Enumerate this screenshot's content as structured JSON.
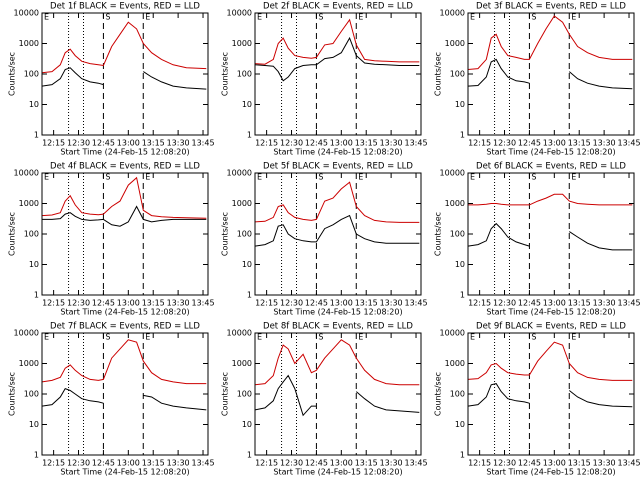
{
  "chart_data": [
    {
      "type": "line",
      "title": "Det 1f BLACK = Events, RED = LLD",
      "x_label": "Start Time (24-Feb-15 12:08:20)",
      "y_label": "Counts/sec",
      "log_scale": true,
      "xlim": [
        "12:08",
        "13:48"
      ],
      "ylim": [
        1,
        10000
      ],
      "yticks": [
        1,
        10,
        100,
        1000,
        10000
      ],
      "xticks": [
        "12:15",
        "12:30",
        "12:45",
        "13:00",
        "13:15",
        "13:30",
        "13:45"
      ],
      "x": [
        "12:08",
        "12:14",
        "12:19",
        "12:22",
        "12:25",
        "12:28",
        "12:32",
        "12:37",
        "12:42",
        "12:45",
        "12:50",
        "12:55",
        "13:00",
        "13:05",
        "13:09",
        "13:14",
        "13:20",
        "13:27",
        "13:35",
        "13:47"
      ],
      "series": [
        {
          "color": "#000000",
          "values": [
            40,
            45,
            70,
            140,
            160,
            110,
            70,
            55,
            50,
            45,
            null,
            null,
            null,
            null,
            120,
            80,
            55,
            40,
            35,
            32
          ]
        },
        {
          "color": "#cc0000",
          "values": [
            110,
            120,
            200,
            500,
            650,
            400,
            260,
            220,
            200,
            190,
            800,
            2000,
            5000,
            3000,
            1000,
            500,
            300,
            200,
            160,
            150
          ]
        }
      ],
      "annotations": [
        {
          "x": "12:08",
          "label": "E"
        },
        {
          "x": "12:45",
          "label": "S"
        },
        {
          "x": "13:09",
          "label": "E"
        }
      ],
      "dashed_lines": [
        "12:45",
        "13:09"
      ],
      "dotted_lines": [
        "12:24",
        "12:33"
      ]
    },
    {
      "type": "line",
      "title": "Det 2f BLACK = Events, RED = LLD",
      "x_label": "Start Time (24-Feb-15 12:08:20)",
      "y_label": "Counts/sec",
      "log_scale": true,
      "xlim": [
        "12:08",
        "13:48"
      ],
      "ylim": [
        1,
        10000
      ],
      "yticks": [
        1,
        10,
        100,
        1000,
        10000
      ],
      "xticks": [
        "12:15",
        "12:30",
        "12:45",
        "13:00",
        "13:15",
        "13:30",
        "13:45"
      ],
      "x": [
        "12:08",
        "12:14",
        "12:19",
        "12:22",
        "12:25",
        "12:28",
        "12:32",
        "12:37",
        "12:42",
        "12:45",
        "12:50",
        "12:55",
        "13:00",
        "13:05",
        "13:09",
        "13:14",
        "13:20",
        "13:27",
        "13:35",
        "13:47"
      ],
      "series": [
        {
          "color": "#000000",
          "values": [
            200,
            190,
            180,
            120,
            60,
            80,
            150,
            190,
            200,
            200,
            320,
            350,
            500,
            1500,
            400,
            230,
            210,
            200,
            190,
            190
          ]
        },
        {
          "color": "#cc0000",
          "values": [
            220,
            210,
            300,
            1000,
            1500,
            700,
            400,
            350,
            330,
            350,
            900,
            1000,
            2500,
            6000,
            900,
            300,
            270,
            260,
            250,
            250
          ]
        }
      ],
      "annotations": [
        {
          "x": "12:08",
          "label": "E"
        },
        {
          "x": "12:45",
          "label": "S"
        },
        {
          "x": "13:09",
          "label": "E"
        }
      ],
      "dashed_lines": [
        "12:45",
        "13:09"
      ],
      "dotted_lines": [
        "12:24",
        "12:33"
      ]
    },
    {
      "type": "line",
      "title": "Det 3f BLACK = Events, RED = LLD",
      "x_label": "Start Time (24-Feb-15 12:08:20)",
      "y_label": "Counts/sec",
      "log_scale": true,
      "xlim": [
        "12:08",
        "13:48"
      ],
      "ylim": [
        1,
        10000
      ],
      "yticks": [
        1,
        10,
        100,
        1000,
        10000
      ],
      "xticks": [
        "12:15",
        "12:30",
        "12:45",
        "13:00",
        "13:15",
        "13:30",
        "13:45"
      ],
      "x": [
        "12:08",
        "12:14",
        "12:19",
        "12:22",
        "12:25",
        "12:28",
        "12:32",
        "12:37",
        "12:42",
        "12:45",
        "12:50",
        "12:55",
        "13:00",
        "13:05",
        "13:09",
        "13:14",
        "13:20",
        "13:27",
        "13:35",
        "13:47"
      ],
      "series": [
        {
          "color": "#000000",
          "values": [
            40,
            42,
            80,
            250,
            300,
            150,
            80,
            60,
            55,
            50,
            null,
            null,
            null,
            null,
            120,
            70,
            50,
            40,
            35,
            33
          ]
        },
        {
          "color": "#cc0000",
          "values": [
            140,
            150,
            300,
            1500,
            2000,
            800,
            400,
            350,
            300,
            300,
            1000,
            3000,
            8000,
            5000,
            2000,
            800,
            500,
            350,
            300,
            300
          ]
        }
      ],
      "annotations": [
        {
          "x": "12:08",
          "label": "E"
        },
        {
          "x": "12:45",
          "label": "S"
        },
        {
          "x": "13:09",
          "label": "E"
        }
      ],
      "dashed_lines": [
        "12:45",
        "13:09"
      ],
      "dotted_lines": [
        "12:24",
        "12:33"
      ]
    },
    {
      "type": "line",
      "title": "Det 4f BLACK = Events, RED = LLD",
      "x_label": "Start Time (24-Feb-15 12:08:20)",
      "y_label": "Counts/sec",
      "log_scale": true,
      "xlim": [
        "12:08",
        "13:48"
      ],
      "ylim": [
        1,
        10000
      ],
      "yticks": [
        1,
        10,
        100,
        1000,
        10000
      ],
      "xticks": [
        "12:15",
        "12:30",
        "12:45",
        "13:00",
        "13:15",
        "13:30",
        "13:45"
      ],
      "x": [
        "12:08",
        "12:14",
        "12:19",
        "12:22",
        "12:25",
        "12:28",
        "12:32",
        "12:37",
        "12:42",
        "12:45",
        "12:50",
        "12:55",
        "13:00",
        "13:05",
        "13:09",
        "13:14",
        "13:20",
        "13:27",
        "13:35",
        "13:47"
      ],
      "series": [
        {
          "color": "#000000",
          "values": [
            300,
            300,
            320,
            450,
            500,
            380,
            300,
            280,
            290,
            300,
            200,
            180,
            250,
            800,
            300,
            250,
            280,
            300,
            300,
            300
          ]
        },
        {
          "color": "#cc0000",
          "values": [
            400,
            420,
            500,
            1200,
            1800,
            900,
            500,
            450,
            430,
            450,
            800,
            1200,
            4000,
            7000,
            600,
            400,
            370,
            350,
            340,
            330
          ]
        }
      ],
      "annotations": [
        {
          "x": "12:08",
          "label": "E"
        },
        {
          "x": "12:45",
          "label": "S"
        },
        {
          "x": "13:09",
          "label": "E"
        }
      ],
      "dashed_lines": [
        "12:45",
        "13:09"
      ],
      "dotted_lines": [
        "12:24",
        "12:33"
      ]
    },
    {
      "type": "line",
      "title": "Det 5f BLACK = Events, RED = LLD",
      "x_label": "Start Time (24-Feb-15 12:08:20)",
      "y_label": "Counts/sec",
      "log_scale": true,
      "xlim": [
        "12:08",
        "13:48"
      ],
      "ylim": [
        1,
        10000
      ],
      "yticks": [
        1,
        10,
        100,
        1000,
        10000
      ],
      "xticks": [
        "12:15",
        "12:30",
        "12:45",
        "13:00",
        "13:15",
        "13:30",
        "13:45"
      ],
      "x": [
        "12:08",
        "12:14",
        "12:19",
        "12:22",
        "12:25",
        "12:28",
        "12:32",
        "12:37",
        "12:42",
        "12:45",
        "12:50",
        "12:55",
        "13:00",
        "13:05",
        "13:09",
        "13:14",
        "13:20",
        "13:27",
        "13:35",
        "13:47"
      ],
      "series": [
        {
          "color": "#000000",
          "values": [
            40,
            45,
            60,
            180,
            200,
            100,
            70,
            60,
            55,
            55,
            150,
            200,
            300,
            400,
            100,
            70,
            55,
            50,
            50,
            50
          ]
        },
        {
          "color": "#cc0000",
          "values": [
            250,
            260,
            350,
            800,
            900,
            500,
            350,
            300,
            280,
            300,
            1200,
            1500,
            3000,
            5000,
            800,
            400,
            280,
            250,
            240,
            240
          ]
        }
      ],
      "annotations": [
        {
          "x": "12:08",
          "label": "E"
        },
        {
          "x": "12:45",
          "label": "S"
        },
        {
          "x": "13:09",
          "label": "E"
        }
      ],
      "dashed_lines": [
        "12:45",
        "13:09"
      ],
      "dotted_lines": [
        "12:24",
        "12:33"
      ]
    },
    {
      "type": "line",
      "title": "Det 6f BLACK = Events, RED = LLD",
      "x_label": "Start Time (24-Feb-15 12:08:20)",
      "y_label": "Counts/sec",
      "log_scale": true,
      "xlim": [
        "12:08",
        "13:48"
      ],
      "ylim": [
        1,
        10000
      ],
      "yticks": [
        1,
        10,
        100,
        1000,
        10000
      ],
      "xticks": [
        "12:15",
        "12:30",
        "12:45",
        "13:00",
        "13:15",
        "13:30",
        "13:45"
      ],
      "x": [
        "12:08",
        "12:14",
        "12:19",
        "12:22",
        "12:25",
        "12:28",
        "12:32",
        "12:37",
        "12:42",
        "12:45",
        "12:50",
        "12:55",
        "13:00",
        "13:05",
        "13:09",
        "13:14",
        "13:20",
        "13:27",
        "13:35",
        "13:47"
      ],
      "series": [
        {
          "color": "#000000",
          "values": [
            40,
            45,
            60,
            150,
            220,
            150,
            80,
            55,
            45,
            40,
            null,
            null,
            null,
            null,
            120,
            80,
            50,
            35,
            30,
            30
          ]
        },
        {
          "color": "#cc0000",
          "values": [
            900,
            900,
            950,
            1000,
            1000,
            950,
            900,
            900,
            900,
            900,
            1200,
            1500,
            2000,
            2000,
            1200,
            1000,
            950,
            900,
            900,
            900
          ]
        }
      ],
      "annotations": [
        {
          "x": "12:08",
          "label": "E"
        },
        {
          "x": "12:45",
          "label": "S"
        },
        {
          "x": "13:09",
          "label": "E"
        }
      ],
      "dashed_lines": [
        "12:45",
        "13:09"
      ],
      "dotted_lines": [
        "12:24",
        "12:33"
      ]
    },
    {
      "type": "line",
      "title": "Det 7f BLACK = Events, RED = LLD",
      "x_label": "Start Time (24-Feb-15 12:08:20)",
      "y_label": "Counts/sec",
      "log_scale": true,
      "xlim": [
        "12:08",
        "13:48"
      ],
      "ylim": [
        1,
        10000
      ],
      "yticks": [
        1,
        10,
        100,
        1000,
        10000
      ],
      "xticks": [
        "12:15",
        "12:30",
        "12:45",
        "13:00",
        "13:15",
        "13:30",
        "13:45"
      ],
      "x": [
        "12:08",
        "12:14",
        "12:19",
        "12:22",
        "12:25",
        "12:28",
        "12:32",
        "12:37",
        "12:42",
        "12:45",
        "12:50",
        "12:55",
        "13:00",
        "13:05",
        "13:09",
        "13:14",
        "13:20",
        "13:27",
        "13:35",
        "13:47"
      ],
      "series": [
        {
          "color": "#000000",
          "values": [
            40,
            45,
            80,
            150,
            130,
            100,
            70,
            60,
            55,
            50,
            null,
            null,
            null,
            null,
            90,
            80,
            50,
            40,
            35,
            30
          ]
        },
        {
          "color": "#cc0000",
          "values": [
            250,
            280,
            350,
            700,
            900,
            600,
            400,
            300,
            280,
            300,
            1500,
            3000,
            6000,
            5000,
            1200,
            500,
            300,
            250,
            220,
            220
          ]
        }
      ],
      "annotations": [
        {
          "x": "12:08",
          "label": "E"
        },
        {
          "x": "12:45",
          "label": "S"
        },
        {
          "x": "13:09",
          "label": "E"
        }
      ],
      "dashed_lines": [
        "12:45",
        "13:09"
      ],
      "dotted_lines": [
        "12:24",
        "12:33"
      ]
    },
    {
      "type": "line",
      "title": "Det 8f BLACK = Events, RED = LLD",
      "x_label": "Start Time (24-Feb-15 12:08:20)",
      "y_label": "Counts/sec",
      "log_scale": true,
      "xlim": [
        "12:08",
        "13:48"
      ],
      "ylim": [
        1,
        10000
      ],
      "yticks": [
        1,
        10,
        100,
        1000,
        10000
      ],
      "xticks": [
        "12:15",
        "12:30",
        "12:45",
        "13:00",
        "13:15",
        "13:30",
        "13:45"
      ],
      "x": [
        "12:08",
        "12:14",
        "12:19",
        "12:22",
        "12:25",
        "12:28",
        "12:32",
        "12:37",
        "12:42",
        "12:45",
        "12:50",
        "12:55",
        "13:00",
        "13:05",
        "13:09",
        "13:14",
        "13:20",
        "13:27",
        "13:35",
        "13:47"
      ],
      "series": [
        {
          "color": "#000000",
          "values": [
            30,
            35,
            60,
            150,
            250,
            400,
            150,
            20,
            40,
            40,
            null,
            null,
            null,
            null,
            120,
            70,
            40,
            30,
            28,
            25
          ]
        },
        {
          "color": "#cc0000",
          "values": [
            200,
            220,
            400,
            1500,
            4000,
            3000,
            1000,
            2000,
            500,
            600,
            1500,
            3000,
            6000,
            4000,
            1500,
            600,
            300,
            220,
            200,
            200
          ]
        }
      ],
      "annotations": [
        {
          "x": "12:08",
          "label": "E"
        },
        {
          "x": "12:45",
          "label": "S"
        },
        {
          "x": "13:09",
          "label": "E"
        }
      ],
      "dashed_lines": [
        "12:45",
        "13:09"
      ],
      "dotted_lines": [
        "12:24",
        "12:33"
      ]
    },
    {
      "type": "line",
      "title": "Det 9f BLACK = Events, RED = LLD",
      "x_label": "Start Time (24-Feb-15 12:08:20)",
      "y_label": "Counts/sec",
      "log_scale": true,
      "xlim": [
        "12:08",
        "13:48"
      ],
      "ylim": [
        1,
        10000
      ],
      "yticks": [
        1,
        10,
        100,
        1000,
        10000
      ],
      "xticks": [
        "12:15",
        "12:30",
        "12:45",
        "13:00",
        "13:15",
        "13:30",
        "13:45"
      ],
      "x": [
        "12:08",
        "12:14",
        "12:19",
        "12:22",
        "12:25",
        "12:28",
        "12:32",
        "12:37",
        "12:42",
        "12:45",
        "12:50",
        "12:55",
        "13:00",
        "13:05",
        "13:09",
        "13:14",
        "13:20",
        "13:27",
        "13:35",
        "13:47"
      ],
      "series": [
        {
          "color": "#000000",
          "values": [
            40,
            45,
            80,
            200,
            220,
            120,
            70,
            60,
            55,
            50,
            null,
            null,
            null,
            null,
            130,
            80,
            55,
            45,
            40,
            38
          ]
        },
        {
          "color": "#cc0000",
          "values": [
            300,
            320,
            500,
            900,
            1000,
            700,
            500,
            450,
            420,
            420,
            1200,
            2500,
            5000,
            4000,
            1000,
            500,
            350,
            300,
            280,
            280
          ]
        }
      ],
      "annotations": [
        {
          "x": "12:08",
          "label": "E"
        },
        {
          "x": "12:45",
          "label": "S"
        },
        {
          "x": "13:09",
          "label": "E"
        }
      ],
      "dashed_lines": [
        "12:45",
        "13:09"
      ],
      "dotted_lines": [
        "12:24",
        "12:33"
      ]
    }
  ]
}
